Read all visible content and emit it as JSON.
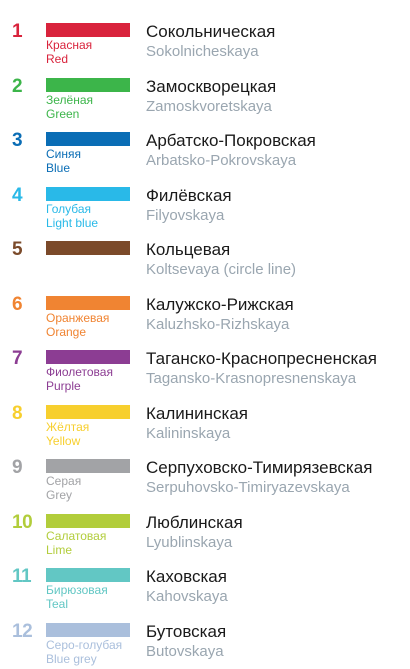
{
  "lines": [
    {
      "number": "1",
      "color_hex": "#d9233c",
      "color_ru": "Красная",
      "color_en": "Red",
      "name_ru": "Сокольническая",
      "name_en": "Sokolnicheskaya"
    },
    {
      "number": "2",
      "color_hex": "#3cb54a",
      "color_ru": "Зелёная",
      "color_en": "Green",
      "name_ru": "Замоскворецкая",
      "name_en": "Zamoskvoretskaya"
    },
    {
      "number": "3",
      "color_hex": "#0a6db5",
      "color_ru": "Синяя",
      "color_en": "Blue",
      "name_ru": "Арбатско-Покровская",
      "name_en": "Arbatsko-Pokrovskaya"
    },
    {
      "number": "4",
      "color_hex": "#29b9e8",
      "color_ru": "Голубая",
      "color_en": "Light blue",
      "name_ru": "Филёвская",
      "name_en": "Filyovskaya"
    },
    {
      "number": "5",
      "color_hex": "#7b4a2a",
      "color_ru": "",
      "color_en": "",
      "name_ru": "Кольцевая",
      "name_en": "Koltsevaya (circle line)"
    },
    {
      "number": "6",
      "color_hex": "#f08432",
      "color_ru": "Оранжевая",
      "color_en": "Orange",
      "name_ru": "Калужско-Рижская",
      "name_en": "Kaluzhsko-Rizhskaya"
    },
    {
      "number": "7",
      "color_hex": "#8c3d93",
      "color_ru": "Фиолетовая",
      "color_en": "Purple",
      "name_ru": "Таганско-Краснопресненская",
      "name_en": "Tagansko-Krasnopresnenskaya"
    },
    {
      "number": "8",
      "color_hex": "#f7cf2e",
      "color_ru": "Жёлтая",
      "color_en": "Yellow",
      "name_ru": "Калининская",
      "name_en": "Kalininskaya"
    },
    {
      "number": "9",
      "color_hex": "#a2a3a6",
      "color_ru": "Серая",
      "color_en": "Grey",
      "name_ru": "Серпуховско-Тимирязевская",
      "name_en": "Serpuhovsko-Timiryazevskaya"
    },
    {
      "number": "10",
      "color_hex": "#b2cd3b",
      "color_ru": "Салатовая",
      "color_en": "Lime",
      "name_ru": "Люблинская",
      "name_en": "Lyublinskaya"
    },
    {
      "number": "11",
      "color_hex": "#62c7c4",
      "color_ru": "Бирюзовая",
      "color_en": "Teal",
      "name_ru": "Каховская",
      "name_en": "Kahovskaya"
    },
    {
      "number": "12",
      "color_hex": "#aabfdc",
      "color_ru": "Серо-голубая",
      "color_en": "Blue grey",
      "name_ru": "Бутовская",
      "name_en": "Butovskaya"
    }
  ]
}
